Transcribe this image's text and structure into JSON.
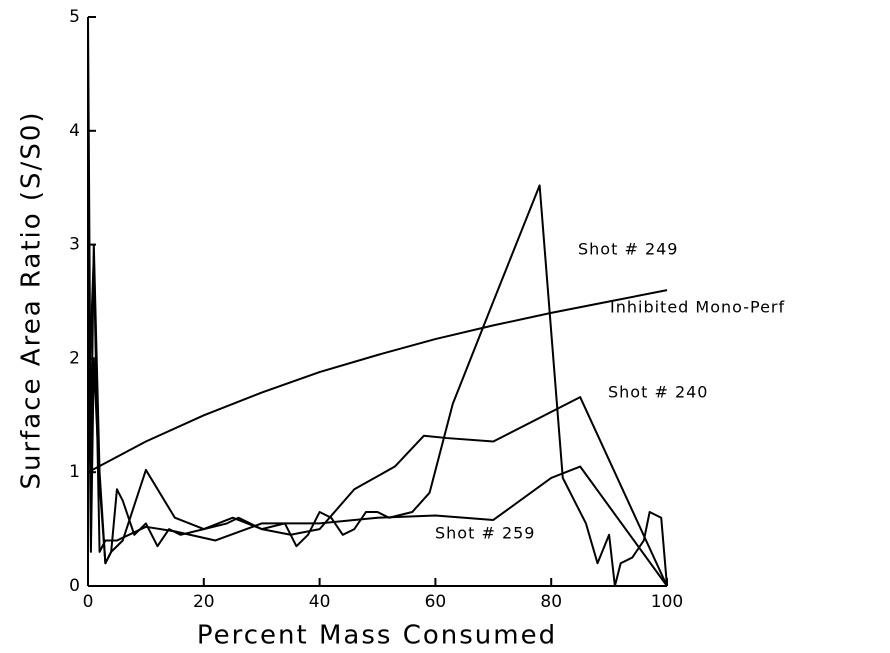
{
  "chart_data": {
    "type": "line",
    "xlabel": "Percent Mass Consumed",
    "ylabel": "Surface Area Ratio (S/S0)",
    "xlim": [
      0,
      100
    ],
    "ylim": [
      0,
      5
    ],
    "xticks": [
      0,
      20,
      40,
      60,
      80,
      100
    ],
    "yticks": [
      0,
      1,
      2,
      3,
      4,
      5
    ],
    "series": [
      {
        "name": "Shot # 249",
        "color": "#000000",
        "x": [
          0,
          0.5,
          1,
          2,
          3,
          4,
          5,
          6,
          8,
          10,
          12,
          14,
          16,
          20,
          24,
          26,
          28,
          30,
          34,
          36,
          38,
          40,
          42,
          44,
          46,
          48,
          50,
          52,
          56,
          59,
          63,
          70,
          78,
          82,
          84,
          86,
          88,
          90,
          91,
          92,
          94,
          96,
          97,
          99,
          100
        ],
        "values": [
          3.0,
          0.3,
          2.0,
          0.9,
          0.2,
          0.3,
          0.85,
          0.75,
          0.45,
          0.55,
          0.35,
          0.5,
          0.45,
          0.5,
          0.55,
          0.6,
          0.55,
          0.5,
          0.55,
          0.35,
          0.45,
          0.65,
          0.6,
          0.45,
          0.5,
          0.65,
          0.65,
          0.6,
          0.65,
          0.82,
          1.6,
          2.5,
          3.52,
          0.95,
          0.75,
          0.55,
          0.2,
          0.45,
          0,
          0.2,
          0.25,
          0.4,
          0.65,
          0.6,
          0
        ]
      },
      {
        "name": "Inhibited Mono-Perf",
        "color": "#000000",
        "x": [
          0,
          10,
          20,
          30,
          40,
          50,
          60,
          70,
          80,
          90,
          100
        ],
        "values": [
          1.0,
          1.27,
          1.5,
          1.7,
          1.88,
          2.03,
          2.17,
          2.29,
          2.4,
          2.5,
          2.6
        ]
      },
      {
        "name": "Shot # 240",
        "color": "#000000",
        "x": [
          0,
          0.5,
          1,
          2,
          3,
          4,
          6,
          10,
          15,
          20,
          25,
          30,
          35,
          40,
          46,
          53,
          58,
          62,
          70,
          85,
          100
        ],
        "values": [
          5.0,
          1.0,
          3.0,
          1.0,
          0.2,
          0.3,
          0.4,
          1.02,
          0.6,
          0.5,
          0.6,
          0.5,
          0.45,
          0.5,
          0.85,
          1.05,
          1.32,
          1.3,
          1.27,
          1.66,
          0
        ]
      },
      {
        "name": "Shot # 259",
        "color": "#000000",
        "x": [
          0,
          1,
          2,
          3,
          5,
          10,
          15,
          22,
          30,
          40,
          50,
          60,
          70,
          80,
          85,
          100
        ],
        "values": [
          1.5,
          2.9,
          0.3,
          0.4,
          0.4,
          0.52,
          0.48,
          0.4,
          0.55,
          0.55,
          0.6,
          0.62,
          0.58,
          0.95,
          1.05,
          0
        ]
      }
    ]
  }
}
